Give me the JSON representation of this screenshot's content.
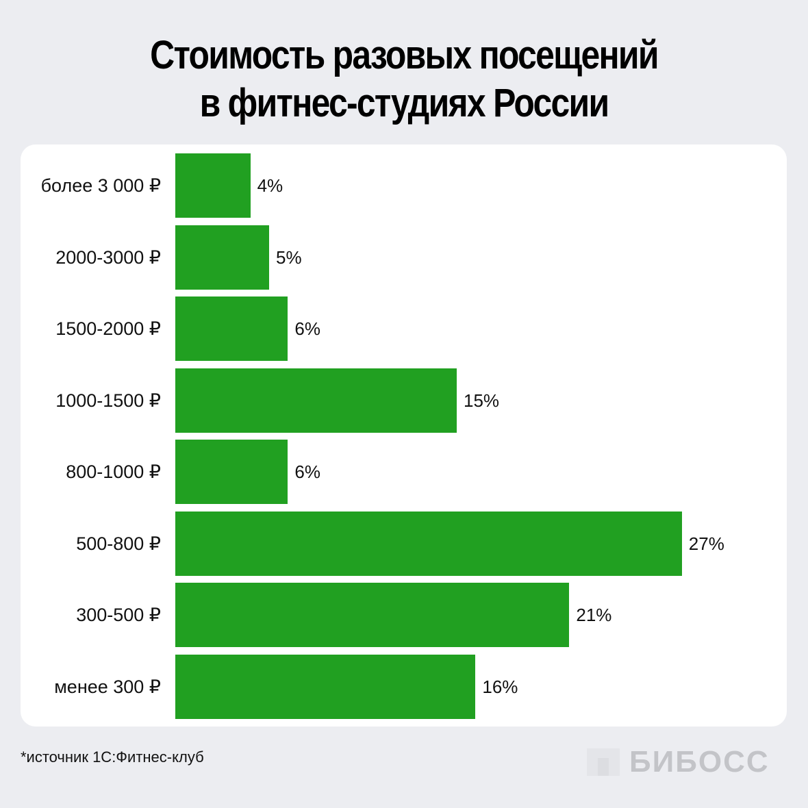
{
  "title": {
    "line1": "Стоимость разовых посещений",
    "line2": "в фитнес-студиях России"
  },
  "chart_data": {
    "type": "bar",
    "orientation": "horizontal",
    "title": "Стоимость разовых посещений в фитнес-студиях России",
    "xlabel": "",
    "ylabel": "",
    "categories": [
      "более 3 000 ₽",
      "2000-3000 ₽",
      "1500-2000 ₽",
      "1000-1500 ₽",
      "800-1000 ₽",
      "500-800 ₽",
      "300-500 ₽",
      "менее 300 ₽"
    ],
    "values": [
      4,
      5,
      6,
      15,
      6,
      27,
      21,
      16
    ],
    "value_labels": [
      "4%",
      "5%",
      "6%",
      "15%",
      "6%",
      "27%",
      "21%",
      "16%"
    ],
    "unit": "%",
    "bar_color": "#21a021",
    "grid": false,
    "legend": "none"
  },
  "footer": {
    "source": "*источник 1С:Фитнес-клуб",
    "logo": "БИБОСС"
  },
  "colors": {
    "background": "#ecedf1",
    "card": "#ffffff",
    "bar": "#21a021",
    "logo": "#c3c4c8"
  }
}
